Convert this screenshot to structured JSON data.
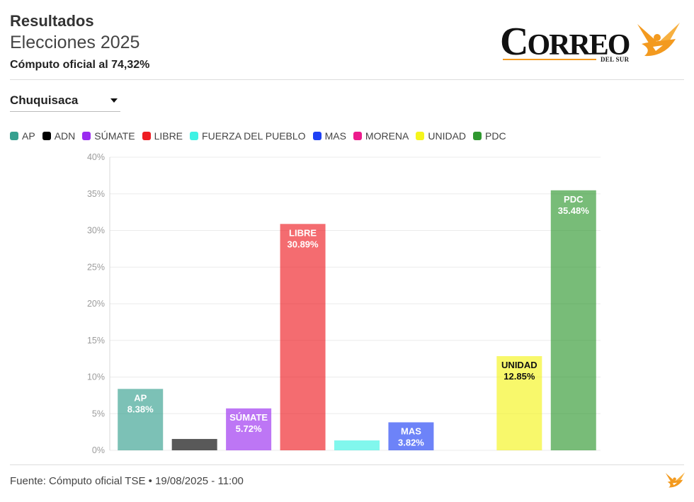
{
  "header": {
    "title": "Resultados",
    "subtitle": "Elecciones 2025",
    "count_status": "Cómputo oficial al 74,32%"
  },
  "logo": {
    "name": "CORREO",
    "tagline": "DEL SUR",
    "icon": "bird-icon",
    "accent_color": "#f39a1f"
  },
  "region_select": {
    "selected": "Chuquisaca",
    "icon": "chevron-down-icon"
  },
  "chart_data": {
    "type": "bar",
    "categories": [
      "AP",
      "ADN",
      "SÚMATE",
      "LIBRE",
      "FUERZA DEL PUEBLO",
      "MAS",
      "MORENA",
      "UNIDAD",
      "PDC"
    ],
    "values": [
      8.38,
      1.55,
      5.72,
      30.89,
      1.35,
      3.82,
      0,
      12.85,
      35.48
    ],
    "colors": [
      "#35a08f",
      "#000000",
      "#9a2cf0",
      "#ee1d23",
      "#3ef2e4",
      "#1e40f5",
      "#ec1b8c",
      "#f5f51c",
      "#2f982f"
    ],
    "ylim": [
      0,
      40
    ],
    "yticks": [
      0,
      5,
      10,
      15,
      20,
      25,
      30,
      35,
      40
    ],
    "ytick_labels": [
      "0%",
      "5%",
      "10%",
      "15%",
      "20%",
      "25%",
      "30%",
      "35%",
      "40%"
    ],
    "value_unit": "%",
    "grid": true,
    "legend": "top-left"
  },
  "footer": {
    "source": "Fuente: Cómputo oficial TSE • 19/08/2025 - 11:00",
    "icon": "bird-icon"
  }
}
